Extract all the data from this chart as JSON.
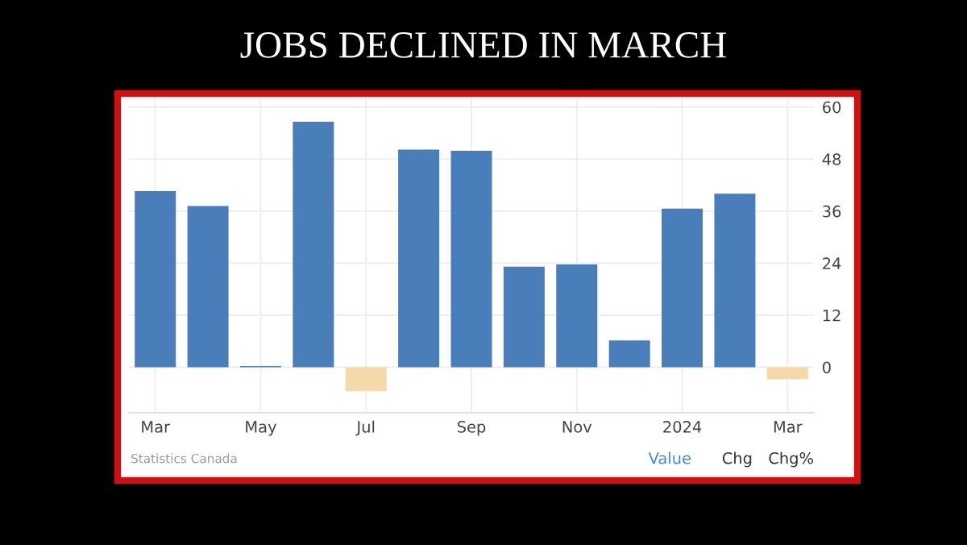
{
  "chart_data": {
    "type": "bar",
    "title": "JOBS DECLINED IN MARCH",
    "categories": [
      "Mar",
      null,
      "May",
      null,
      "Jul",
      null,
      "Sep",
      null,
      "Nov",
      null,
      "2024",
      null,
      "Mar"
    ],
    "values": [
      40.6,
      37.2,
      0.3,
      56.6,
      -5.5,
      50.2,
      49.9,
      23.2,
      23.7,
      6.2,
      36.6,
      40.0,
      -2.8
    ],
    "colors": [
      "#4a7ebb",
      "#4a7ebb",
      "#4a7ebb",
      "#4a7ebb",
      "#f5d9a8",
      "#4a7ebb",
      "#4a7ebb",
      "#4a7ebb",
      "#4a7ebb",
      "#4a7ebb",
      "#4a7ebb",
      "#4a7ebb",
      "#f5d9a8"
    ],
    "ylim": [
      -10.5,
      62
    ],
    "yticks": [
      0,
      12,
      24,
      36,
      48,
      60
    ],
    "grid": true,
    "annotations": [
      "Statistics Canada",
      "Value",
      "Chg",
      "Chg%"
    ]
  }
}
